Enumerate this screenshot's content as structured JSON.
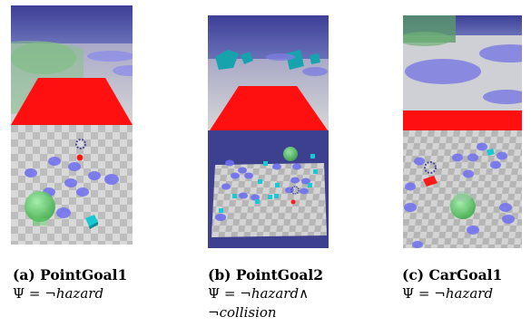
{
  "figures": [
    {
      "id": "a",
      "caption_title": "(a) PointGoal1",
      "formula_prefix": "Ψ = ¬",
      "formula_term1": "hazard",
      "formula_conj": "",
      "formula_prefix2": "",
      "formula_term2": ""
    },
    {
      "id": "b",
      "caption_title": "(b) PointGoal2",
      "formula_prefix": "Ψ = ¬",
      "formula_term1": "hazard",
      "formula_conj": "∧",
      "formula_prefix2": "¬",
      "formula_term2": "collision"
    },
    {
      "id": "c",
      "caption_title": "(c) CarGoal1",
      "formula_prefix": "Ψ = ¬",
      "formula_term1": "hazard",
      "formula_conj": "",
      "formula_prefix2": "",
      "formula_term2": ""
    }
  ],
  "colors": {
    "sky": "#4a4fa0",
    "floor_light": "#d9d9d9",
    "floor_dark": "#b8b8b8",
    "hazard": "#6f6ff0",
    "goal": "#5fd06a",
    "robot": "#ff1a1a",
    "box": "#17c9d4"
  }
}
